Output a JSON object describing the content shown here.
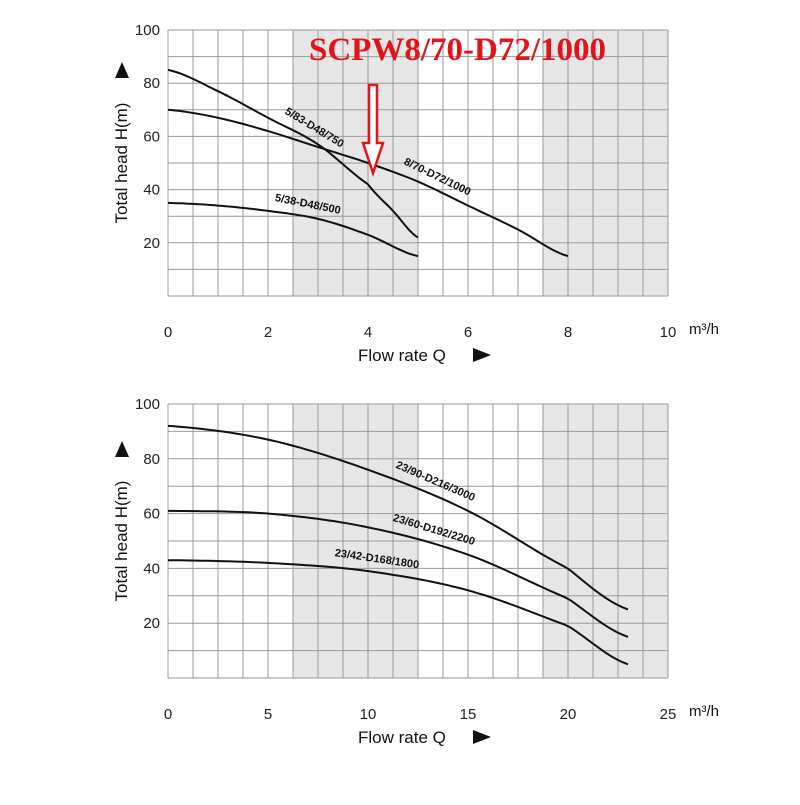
{
  "annotation": {
    "text": "SCPW8/70-D72/1000",
    "color": "#e3131b",
    "points_to": {
      "x": 4.1,
      "y": 50
    }
  },
  "colors": {
    "grid": "#9a9a9a",
    "shade": "#e6e6e6",
    "curve": "#111111",
    "annotation": "#e3131b"
  },
  "chart_data": [
    {
      "type": "line",
      "xlabel": "Flow rate Q",
      "ylabel": "Total head H(m)",
      "unit": "m³/h",
      "xlim": [
        0,
        10
      ],
      "ylim": [
        0,
        100
      ],
      "x_ticks": [
        "0",
        "2",
        "4",
        "6",
        "8",
        "10"
      ],
      "y_ticks": [
        "20",
        "40",
        "60",
        "80",
        "100"
      ],
      "grid": true,
      "grid_x_step": 0.5,
      "grid_y_step": 10,
      "shaded_x_ranges": [
        [
          2.5,
          5
        ],
        [
          7.5,
          10
        ]
      ],
      "series": [
        {
          "name": "5/83-D48/750",
          "x": [
            0,
            1,
            2,
            3,
            4,
            4.5,
            5
          ],
          "y": [
            85,
            77,
            67,
            57,
            42,
            32,
            22
          ]
        },
        {
          "name": "8/70-D72/1000",
          "x": [
            0,
            1,
            2,
            3,
            4,
            5,
            6,
            7,
            8
          ],
          "y": [
            70,
            67,
            62,
            56,
            50,
            43,
            34,
            25,
            15
          ]
        },
        {
          "name": "5/38-D48/500",
          "x": [
            0,
            1,
            2,
            3,
            4,
            5
          ],
          "y": [
            35,
            34,
            32,
            29,
            23,
            15
          ]
        }
      ]
    },
    {
      "type": "line",
      "xlabel": "Flow rate Q",
      "ylabel": "Total head H(m)",
      "unit": "m³/h",
      "xlim": [
        0,
        25
      ],
      "ylim": [
        0,
        100
      ],
      "x_ticks": [
        "0",
        "5",
        "10",
        "15",
        "20",
        "25"
      ],
      "y_ticks": [
        "20",
        "40",
        "60",
        "80",
        "100"
      ],
      "grid": true,
      "grid_x_step": 1.25,
      "grid_y_step": 10,
      "shaded_x_ranges": [
        [
          6.25,
          12.5
        ],
        [
          18.75,
          25
        ]
      ],
      "series": [
        {
          "name": "23/90-D216/3000",
          "x": [
            0,
            5,
            10,
            15,
            20,
            23
          ],
          "y": [
            92,
            87,
            76,
            61,
            40,
            25
          ]
        },
        {
          "name": "23/60-D192/2200",
          "x": [
            0,
            5,
            10,
            15,
            20,
            23
          ],
          "y": [
            61,
            60,
            55,
            45,
            29,
            15
          ]
        },
        {
          "name": "23/42-D168/1800",
          "x": [
            0,
            5,
            10,
            15,
            20,
            23
          ],
          "y": [
            43,
            42,
            39,
            32,
            19,
            5
          ]
        }
      ]
    }
  ]
}
